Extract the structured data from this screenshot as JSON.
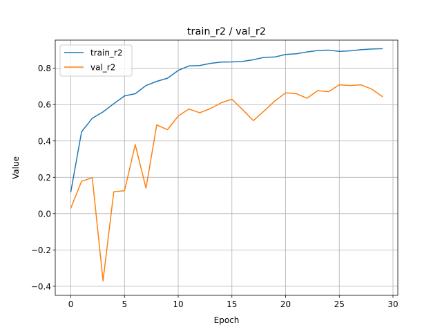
{
  "chart_data": {
    "type": "line",
    "title": "train_r2 / val_r2",
    "xlabel": "Epoch",
    "ylabel": "Value",
    "xlim": [
      -1.45,
      30.45
    ],
    "ylim": [
      -0.45,
      0.955
    ],
    "xticks": [
      0,
      5,
      10,
      15,
      20,
      25,
      30
    ],
    "yticks": [
      -0.4,
      -0.2,
      0.0,
      0.2,
      0.4,
      0.6,
      0.8
    ],
    "ytick_labels": [
      "−0.4",
      "−0.2",
      "0.0",
      "0.2",
      "0.4",
      "0.6",
      "0.8"
    ],
    "grid": true,
    "legend_position": "top-left",
    "x": [
      0,
      1,
      2,
      3,
      4,
      5,
      6,
      7,
      8,
      9,
      10,
      11,
      12,
      13,
      14,
      15,
      16,
      17,
      18,
      19,
      20,
      21,
      22,
      23,
      24,
      25,
      26,
      27,
      28,
      29
    ],
    "series": [
      {
        "name": "train_r2",
        "color": "#1f77b4",
        "values": [
          0.12,
          0.45,
          0.525,
          0.56,
          0.605,
          0.648,
          0.66,
          0.705,
          0.728,
          0.745,
          0.788,
          0.813,
          0.815,
          0.827,
          0.834,
          0.835,
          0.838,
          0.847,
          0.86,
          0.862,
          0.876,
          0.88,
          0.89,
          0.898,
          0.9,
          0.893,
          0.896,
          0.902,
          0.906,
          0.908
        ]
      },
      {
        "name": "val_r2",
        "color": "#ff7f0e",
        "values": [
          0.03,
          0.178,
          0.197,
          -0.37,
          0.12,
          0.126,
          0.38,
          0.14,
          0.488,
          0.462,
          0.537,
          0.576,
          0.555,
          0.578,
          0.61,
          0.63,
          0.572,
          0.512,
          0.565,
          0.62,
          0.665,
          0.66,
          0.635,
          0.677,
          0.671,
          0.709,
          0.705,
          0.709,
          0.686,
          0.645
        ]
      }
    ]
  }
}
